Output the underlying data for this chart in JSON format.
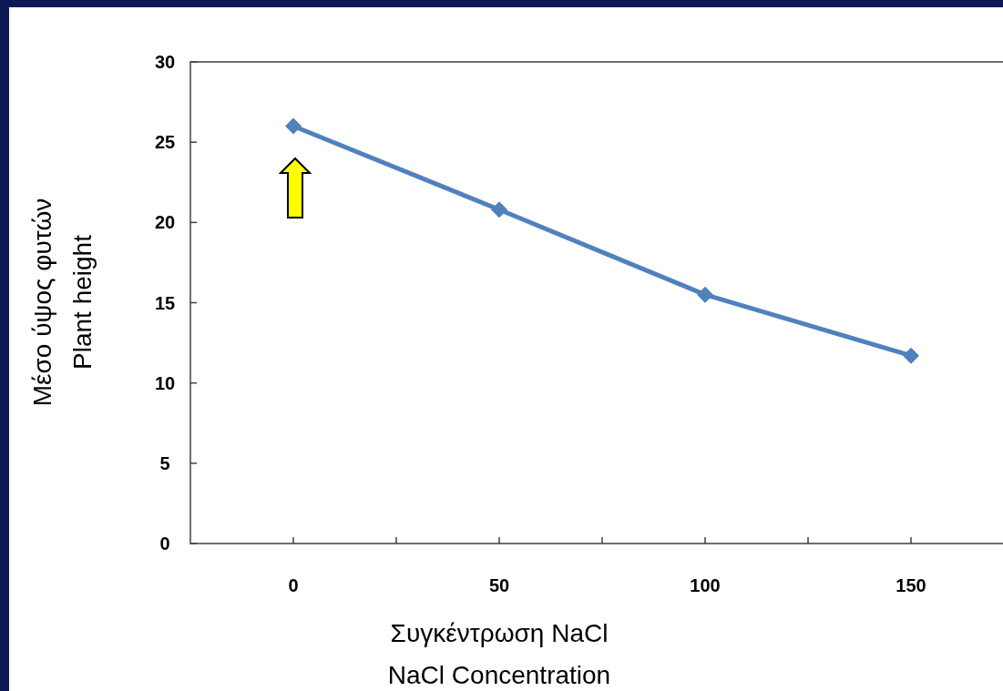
{
  "chart_data": {
    "type": "line",
    "xlabel": "Συγκέντρωση NaCl\nNaCl Concentration",
    "ylabel": "Μέσο ύψος φυτών\nPlant height",
    "x": [
      0,
      50,
      100,
      150
    ],
    "series": [
      {
        "color": "#4f81bd",
        "values": [
          26,
          20.8,
          15.5,
          11.7
        ]
      }
    ],
    "xlim": [
      -25,
      175
    ],
    "xticks": [
      0,
      {
        "value": 25,
        "label": null
      },
      50,
      {
        "value": 75,
        "label": null
      },
      100,
      {
        "value": 125,
        "label": null
      },
      150
    ],
    "ylim": [
      0,
      30
    ],
    "yticks": [
      0,
      5,
      10,
      15,
      20,
      25,
      30
    ],
    "grid": false,
    "marker": "diamond",
    "line_style": "solid"
  }
}
